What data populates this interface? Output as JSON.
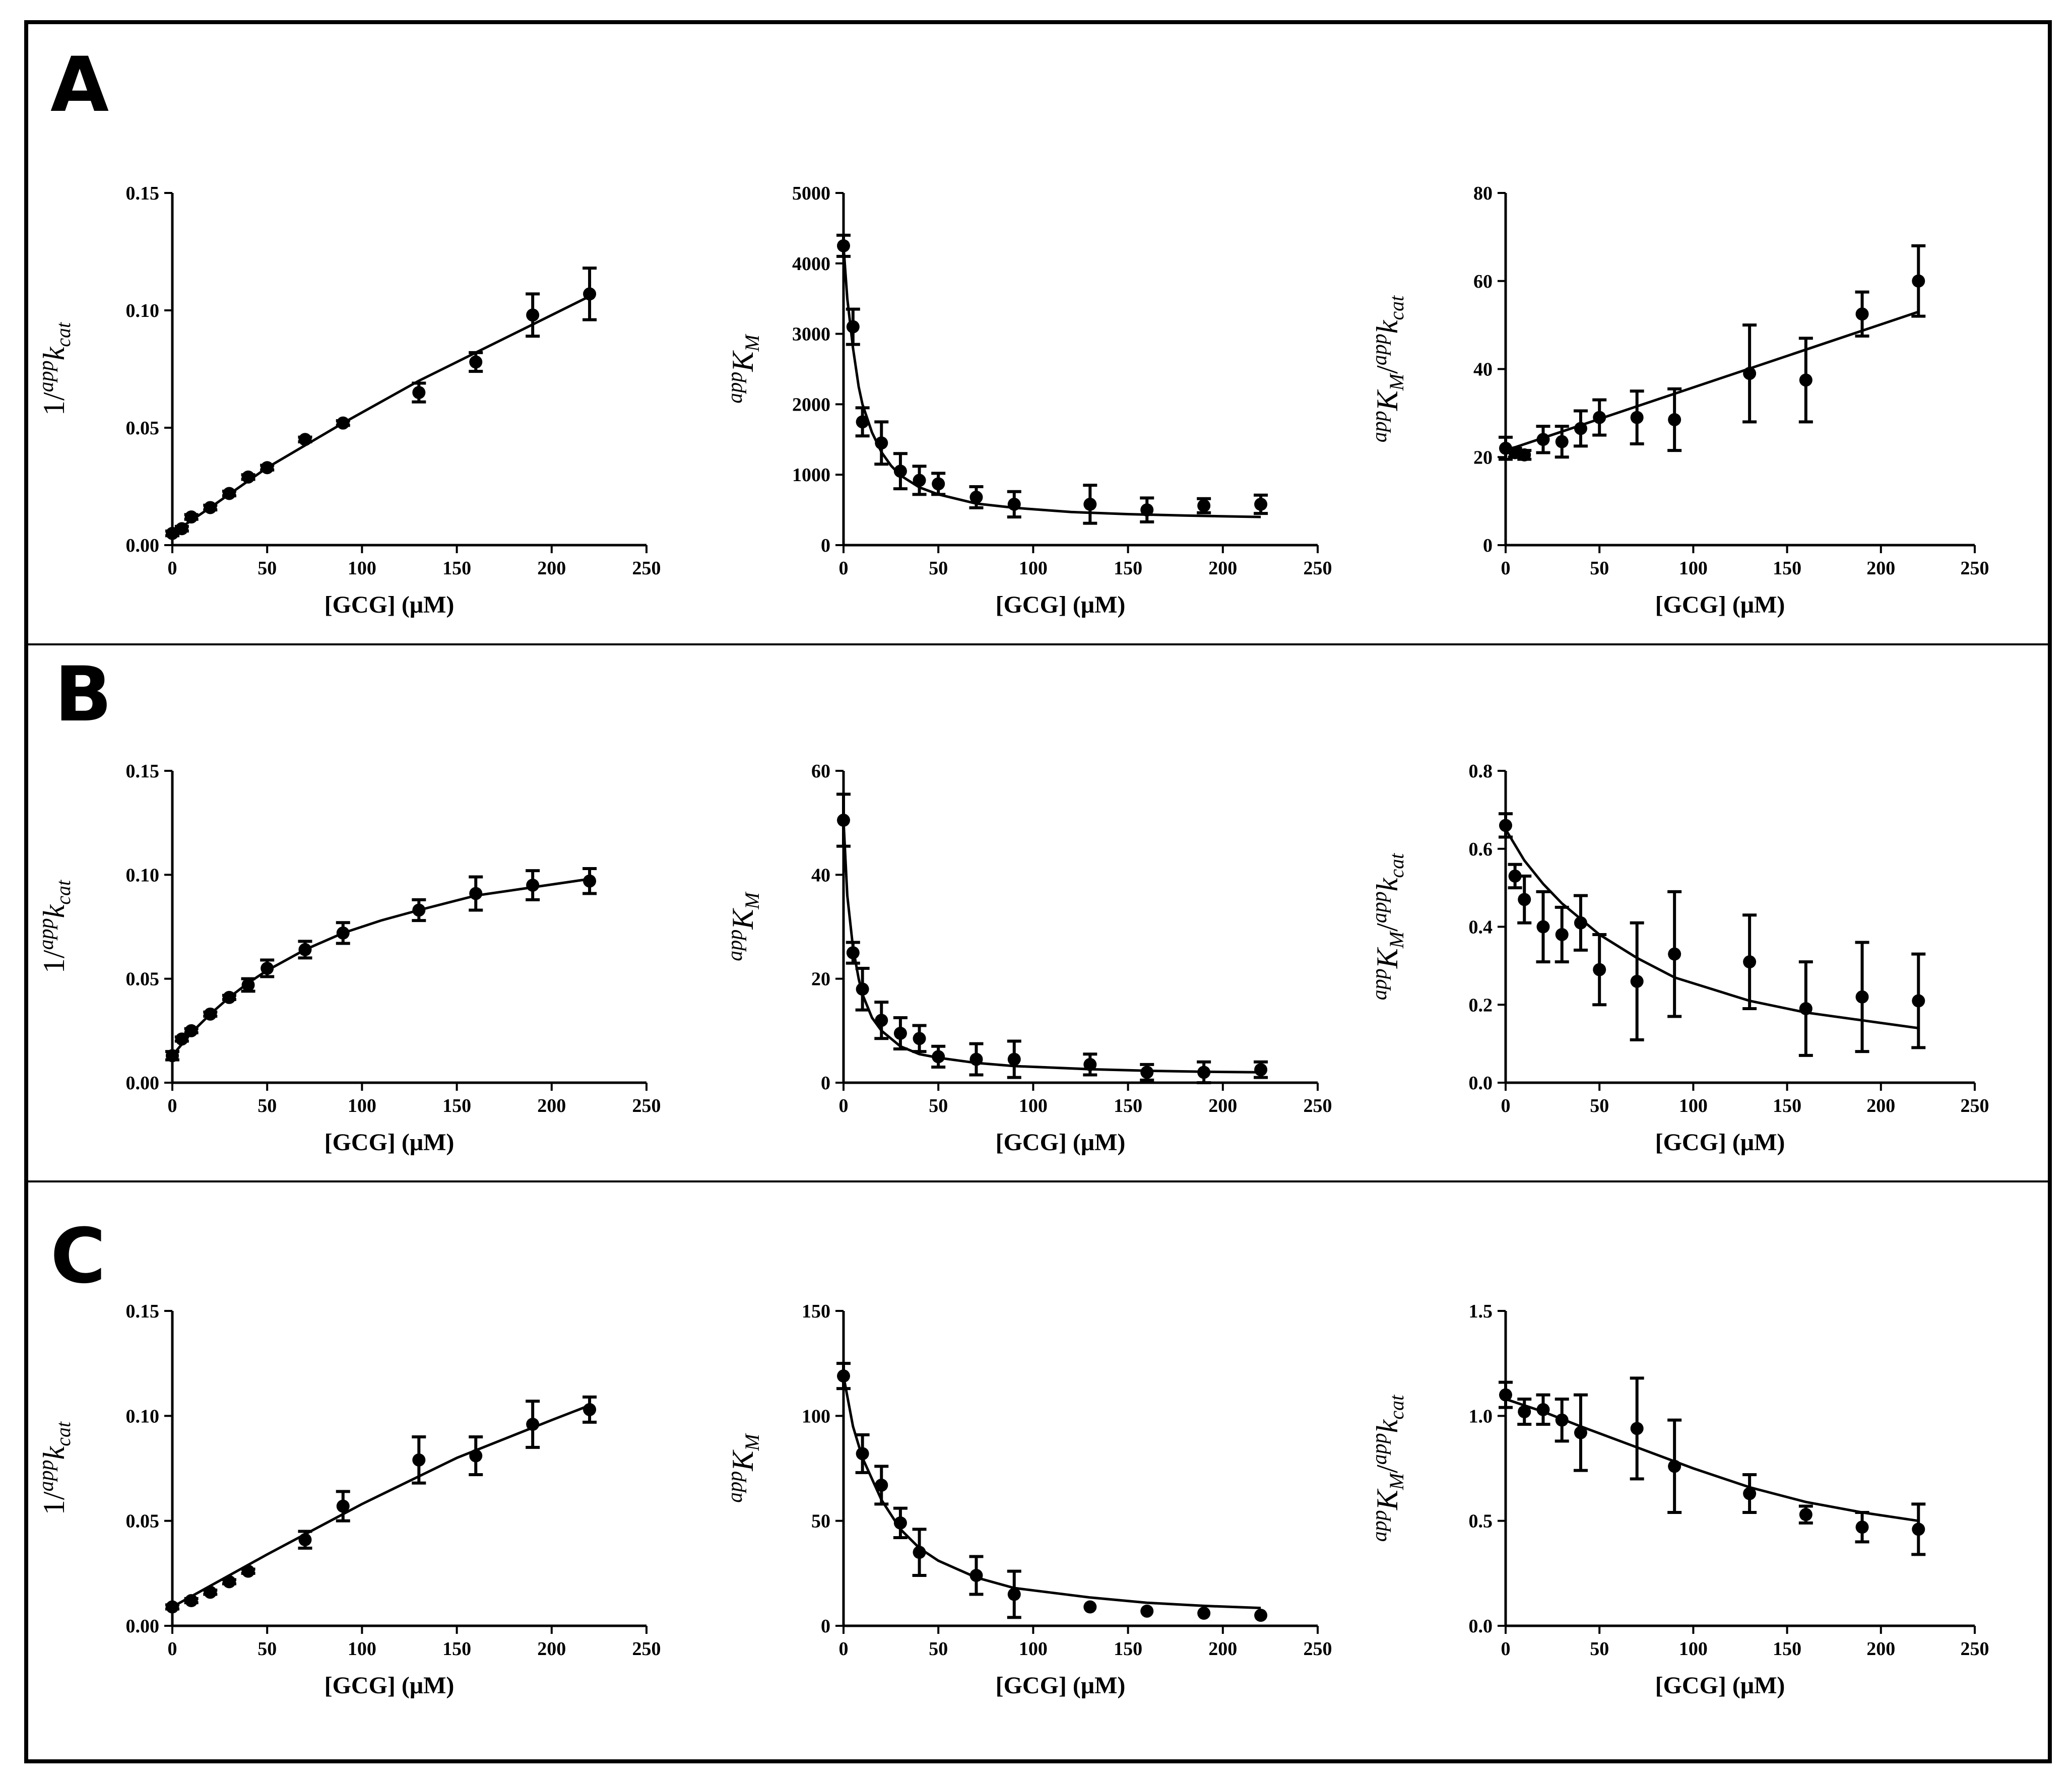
{
  "panels": [
    {
      "letter": "A"
    },
    {
      "letter": "B"
    },
    {
      "letter": "C"
    }
  ],
  "y_labels": {
    "kcat": {
      "prefix": "1/",
      "sup": "app",
      "main": "k",
      "sub": "cat"
    },
    "km": {
      "sup": "app",
      "main": "K",
      "sub": "M"
    },
    "ratio": {
      "sup1": "app",
      "main1": "K",
      "sub1": "M",
      "slash": "/",
      "sup2": "app",
      "main2": "k",
      "sub2": "cat"
    }
  },
  "chart_data": [
    {
      "type": "scatter",
      "panel": "A",
      "col": 0,
      "ylabel_key": "kcat",
      "xlabel": "[GCG] (μM)",
      "xlim": [
        0,
        250
      ],
      "ylim": [
        0,
        0.15
      ],
      "xticks": [
        "0",
        "50",
        "100",
        "150",
        "200",
        "250"
      ],
      "yticks": [
        "0.00",
        "0.05",
        "0.10",
        "0.15"
      ],
      "x": [
        0,
        5,
        10,
        20,
        30,
        40,
        50,
        70,
        90,
        130,
        160,
        190,
        220
      ],
      "y": [
        0.005,
        0.007,
        0.012,
        0.016,
        0.022,
        0.029,
        0.033,
        0.045,
        0.052,
        0.065,
        0.078,
        0.098,
        0.107
      ],
      "err": [
        0.001,
        0.001,
        0.001,
        0.001,
        0.001,
        0.001,
        0.001,
        0.001,
        0.001,
        0.004,
        0.004,
        0.009,
        0.011
      ],
      "fit": {
        "x": [
          0,
          20,
          50,
          90,
          130,
          160,
          190,
          220
        ],
        "y": [
          0.005,
          0.016,
          0.033,
          0.052,
          0.07,
          0.082,
          0.094,
          0.106
        ]
      }
    },
    {
      "type": "scatter",
      "panel": "A",
      "col": 1,
      "ylabel_key": "km",
      "xlabel": "[GCG] (μM)",
      "xlim": [
        0,
        250
      ],
      "ylim": [
        0,
        5000
      ],
      "xticks": [
        "0",
        "50",
        "100",
        "150",
        "200",
        "250"
      ],
      "yticks": [
        "0",
        "1000",
        "2000",
        "3000",
        "4000",
        "5000"
      ],
      "x": [
        0,
        5,
        10,
        20,
        30,
        40,
        50,
        70,
        90,
        130,
        160,
        190,
        220
      ],
      "y": [
        4250,
        3100,
        1750,
        1450,
        1050,
        920,
        870,
        680,
        580,
        580,
        500,
        560,
        580
      ],
      "err": [
        150,
        250,
        200,
        300,
        250,
        200,
        150,
        150,
        180,
        270,
        170,
        100,
        130
      ],
      "fit": {
        "x": [
          0,
          2,
          5,
          8,
          10,
          15,
          20,
          25,
          30,
          40,
          50,
          70,
          90,
          120,
          150,
          180,
          220
        ],
        "y": [
          4250,
          3500,
          2800,
          2250,
          2000,
          1600,
          1320,
          1130,
          990,
          820,
          720,
          590,
          530,
          470,
          440,
          420,
          400
        ]
      }
    },
    {
      "type": "scatter",
      "panel": "A",
      "col": 2,
      "ylabel_key": "ratio",
      "xlabel": "[GCG] (μM)",
      "xlim": [
        0,
        250
      ],
      "ylim": [
        0,
        80
      ],
      "xticks": [
        "0",
        "50",
        "100",
        "150",
        "200",
        "250"
      ],
      "yticks": [
        "0",
        "20",
        "40",
        "60",
        "80"
      ],
      "x": [
        0,
        5,
        10,
        20,
        30,
        40,
        50,
        70,
        90,
        130,
        160,
        190,
        220
      ],
      "y": [
        22,
        21,
        20.5,
        24,
        23.5,
        26.5,
        29,
        29,
        28.5,
        39,
        37.5,
        52.5,
        60
      ],
      "err": [
        2.5,
        1,
        1,
        3,
        3.5,
        4,
        4,
        6,
        7,
        11,
        9.5,
        5,
        8
      ],
      "fit": {
        "x": [
          0,
          220
        ],
        "y": [
          21.5,
          53
        ]
      }
    },
    {
      "type": "scatter",
      "panel": "B",
      "col": 0,
      "ylabel_key": "kcat",
      "xlabel": "[GCG] (μM)",
      "xlim": [
        0,
        250
      ],
      "ylim": [
        0,
        0.15
      ],
      "xticks": [
        "0",
        "50",
        "100",
        "150",
        "200",
        "250"
      ],
      "yticks": [
        "0.00",
        "0.05",
        "0.10",
        "0.15"
      ],
      "x": [
        0,
        5,
        10,
        20,
        30,
        40,
        50,
        70,
        90,
        130,
        160,
        190,
        220
      ],
      "y": [
        0.013,
        0.021,
        0.025,
        0.033,
        0.041,
        0.047,
        0.055,
        0.064,
        0.072,
        0.083,
        0.091,
        0.095,
        0.097
      ],
      "err": [
        0.002,
        0.001,
        0.001,
        0.001,
        0.001,
        0.003,
        0.004,
        0.004,
        0.005,
        0.005,
        0.008,
        0.007,
        0.006
      ],
      "fit": {
        "x": [
          0,
          10,
          20,
          30,
          40,
          50,
          70,
          90,
          110,
          130,
          160,
          190,
          220
        ],
        "y": [
          0.013,
          0.024,
          0.033,
          0.041,
          0.048,
          0.054,
          0.064,
          0.072,
          0.078,
          0.083,
          0.09,
          0.094,
          0.098
        ]
      }
    },
    {
      "type": "scatter",
      "panel": "B",
      "col": 1,
      "ylabel_key": "km",
      "xlabel": "[GCG] (μM)",
      "xlim": [
        0,
        250
      ],
      "ylim": [
        0,
        60
      ],
      "xticks": [
        "0",
        "50",
        "100",
        "150",
        "200",
        "250"
      ],
      "yticks": [
        "0",
        "20",
        "40",
        "60"
      ],
      "x": [
        0,
        5,
        10,
        20,
        30,
        40,
        50,
        70,
        90,
        130,
        160,
        190,
        220
      ],
      "y": [
        50.5,
        25,
        18,
        12,
        9.5,
        8.5,
        5,
        4.5,
        4.5,
        3.5,
        2,
        2,
        2.5
      ],
      "err": [
        5,
        2,
        4,
        3.5,
        3,
        2.5,
        2,
        3,
        3.5,
        2,
        1.5,
        2,
        1.5
      ],
      "fit": {
        "x": [
          0,
          2,
          5,
          8,
          10,
          15,
          20,
          30,
          40,
          50,
          70,
          90,
          130,
          160,
          190,
          220
        ],
        "y": [
          50.5,
          36,
          26,
          20,
          17,
          12.5,
          10,
          7,
          5.5,
          4.8,
          3.8,
          3.2,
          2.6,
          2.3,
          2.1,
          2
        ]
      }
    },
    {
      "type": "scatter",
      "panel": "B",
      "col": 2,
      "ylabel_key": "ratio",
      "xlabel": "[GCG] (μM)",
      "xlim": [
        0,
        250
      ],
      "ylim": [
        0,
        0.8
      ],
      "xticks": [
        "0",
        "50",
        "100",
        "150",
        "200",
        "250"
      ],
      "yticks": [
        "0.0",
        "0.2",
        "0.4",
        "0.6",
        "0.8"
      ],
      "x": [
        0,
        5,
        10,
        20,
        30,
        40,
        50,
        70,
        90,
        130,
        160,
        190,
        220
      ],
      "y": [
        0.66,
        0.53,
        0.47,
        0.4,
        0.38,
        0.41,
        0.29,
        0.26,
        0.33,
        0.31,
        0.19,
        0.22,
        0.21
      ],
      "err": [
        0.03,
        0.03,
        0.06,
        0.09,
        0.07,
        0.07,
        0.09,
        0.15,
        0.16,
        0.12,
        0.12,
        0.14,
        0.12
      ],
      "fit": {
        "x": [
          0,
          10,
          20,
          30,
          40,
          50,
          70,
          90,
          110,
          130,
          160,
          190,
          220
        ],
        "y": [
          0.65,
          0.57,
          0.51,
          0.46,
          0.42,
          0.38,
          0.32,
          0.27,
          0.24,
          0.21,
          0.18,
          0.16,
          0.14
        ]
      }
    },
    {
      "type": "scatter",
      "panel": "C",
      "col": 0,
      "ylabel_key": "kcat",
      "xlabel": "[GCG] (μM)",
      "xlim": [
        0,
        250
      ],
      "ylim": [
        0,
        0.15
      ],
      "xticks": [
        "0",
        "50",
        "100",
        "150",
        "200",
        "250"
      ],
      "yticks": [
        "0.00",
        "0.05",
        "0.10",
        "0.15"
      ],
      "x": [
        0,
        10,
        20,
        30,
        40,
        70,
        90,
        130,
        160,
        190,
        220
      ],
      "y": [
        0.009,
        0.012,
        0.016,
        0.021,
        0.026,
        0.041,
        0.057,
        0.079,
        0.081,
        0.096,
        0.103
      ],
      "err": [
        0.001,
        0.001,
        0.001,
        0.001,
        0.001,
        0.004,
        0.007,
        0.011,
        0.009,
        0.011,
        0.006
      ],
      "fit": {
        "x": [
          0,
          50,
          100,
          150,
          200,
          220
        ],
        "y": [
          0.009,
          0.034,
          0.058,
          0.08,
          0.098,
          0.105
        ]
      }
    },
    {
      "type": "scatter",
      "panel": "C",
      "col": 1,
      "ylabel_key": "km",
      "xlabel": "[GCG] (μM)",
      "xlim": [
        0,
        250
      ],
      "ylim": [
        0,
        150
      ],
      "xticks": [
        "0",
        "50",
        "100",
        "150",
        "200",
        "250"
      ],
      "yticks": [
        "0",
        "50",
        "100",
        "150"
      ],
      "x": [
        0,
        10,
        20,
        30,
        40,
        70,
        90,
        130,
        160,
        190,
        220
      ],
      "y": [
        119,
        82,
        67,
        49,
        35,
        24,
        15,
        9,
        7,
        6,
        5
      ],
      "err": [
        6,
        9,
        9,
        7,
        11,
        9,
        11,
        0,
        0,
        0,
        0
      ],
      "fit": {
        "x": [
          0,
          5,
          10,
          20,
          30,
          40,
          50,
          70,
          90,
          130,
          160,
          190,
          220
        ],
        "y": [
          119,
          95,
          80,
          60,
          46,
          37,
          31,
          23,
          18,
          13.5,
          11,
          9.5,
          8.5
        ]
      }
    },
    {
      "type": "scatter",
      "panel": "C",
      "col": 2,
      "ylabel_key": "ratio",
      "xlabel": "[GCG] (μM)",
      "xlim": [
        0,
        250
      ],
      "ylim": [
        0,
        1.5
      ],
      "xticks": [
        "0",
        "50",
        "100",
        "150",
        "200",
        "250"
      ],
      "yticks": [
        "0.0",
        "0.5",
        "1.0",
        "1.5"
      ],
      "x": [
        0,
        10,
        20,
        30,
        40,
        70,
        90,
        130,
        160,
        190,
        220
      ],
      "y": [
        1.1,
        1.02,
        1.03,
        0.98,
        0.92,
        0.94,
        0.76,
        0.63,
        0.53,
        0.47,
        0.46
      ],
      "err": [
        0.06,
        0.06,
        0.07,
        0.1,
        0.18,
        0.24,
        0.22,
        0.09,
        0.04,
        0.07,
        0.12
      ],
      "fit": {
        "x": [
          0,
          20,
          40,
          70,
          100,
          130,
          160,
          190,
          220
        ],
        "y": [
          1.08,
          1.02,
          0.95,
          0.85,
          0.75,
          0.66,
          0.59,
          0.54,
          0.5
        ]
      }
    }
  ]
}
